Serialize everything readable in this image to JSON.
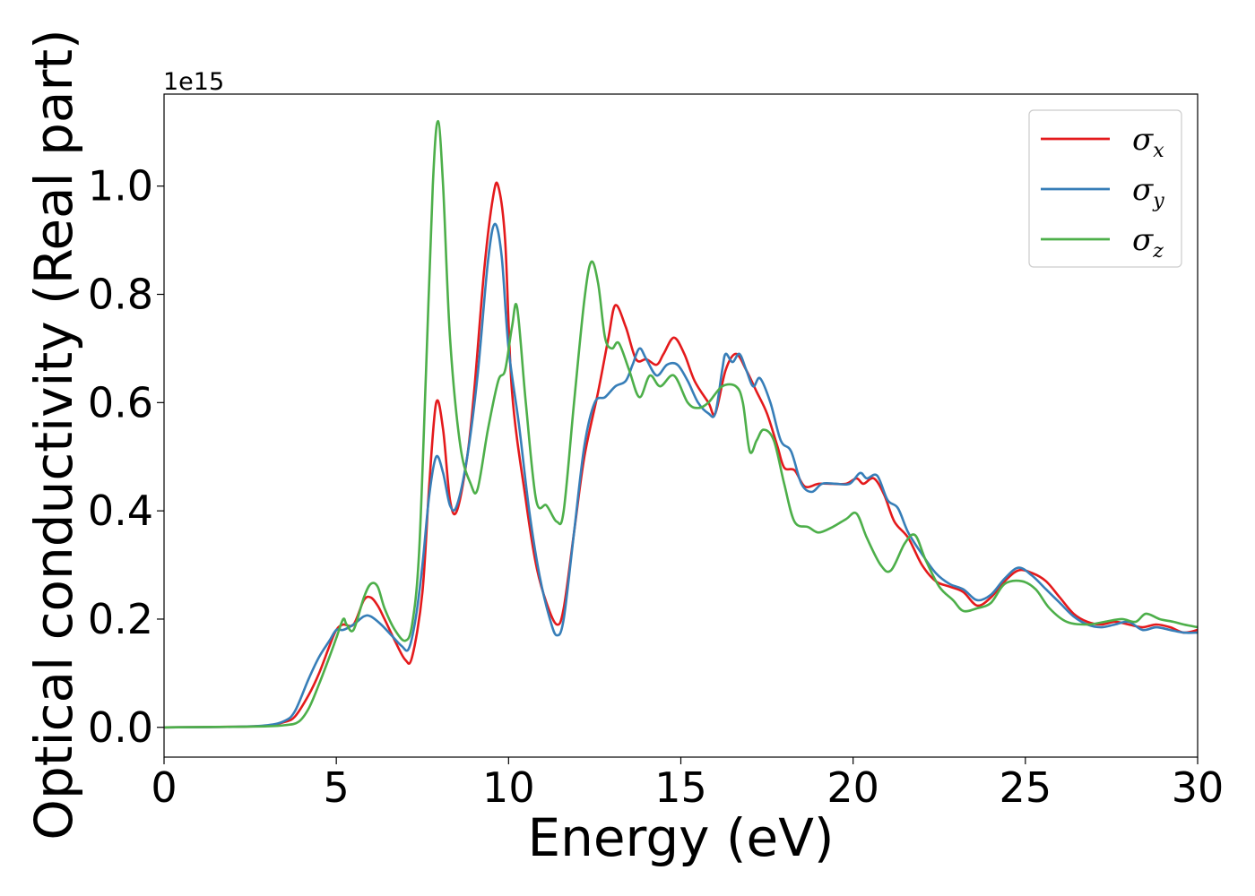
{
  "chart_data": {
    "type": "line",
    "xlabel": "Energy (eV)",
    "ylabel": "Optical conductivity (Real part)",
    "y_offset_label": "1e15",
    "xlim": [
      0,
      30
    ],
    "ylim": [
      -0.055,
      1.17
    ],
    "x_ticks": [
      0,
      5,
      10,
      15,
      20,
      25,
      30
    ],
    "x_tick_labels": [
      "0",
      "5",
      "10",
      "15",
      "20",
      "25",
      "30"
    ],
    "y_ticks": [
      0.0,
      0.2,
      0.4,
      0.6,
      0.8,
      1.0
    ],
    "y_tick_labels": [
      "0.0",
      "0.2",
      "0.4",
      "0.6",
      "0.8",
      "1.0"
    ],
    "grid": false,
    "legend_position": "top-right",
    "series": [
      {
        "name": "σx",
        "symbol": "σ",
        "subscript": "x",
        "color": "#e41a1c",
        "points": [
          [
            0,
            0
          ],
          [
            2,
            0.001
          ],
          [
            3,
            0.003
          ],
          [
            3.5,
            0.01
          ],
          [
            3.8,
            0.02
          ],
          [
            4.2,
            0.06
          ],
          [
            4.5,
            0.1
          ],
          [
            4.8,
            0.15
          ],
          [
            5.0,
            0.18
          ],
          [
            5.2,
            0.19
          ],
          [
            5.5,
            0.19
          ],
          [
            5.8,
            0.235
          ],
          [
            6.0,
            0.24
          ],
          [
            6.2,
            0.225
          ],
          [
            6.4,
            0.2
          ],
          [
            6.7,
            0.16
          ],
          [
            7.0,
            0.125
          ],
          [
            7.2,
            0.13
          ],
          [
            7.5,
            0.25
          ],
          [
            7.7,
            0.45
          ],
          [
            7.9,
            0.6
          ],
          [
            8.1,
            0.55
          ],
          [
            8.3,
            0.42
          ],
          [
            8.5,
            0.4
          ],
          [
            8.8,
            0.5
          ],
          [
            9.0,
            0.62
          ],
          [
            9.3,
            0.85
          ],
          [
            9.55,
            0.98
          ],
          [
            9.7,
            1.0
          ],
          [
            9.9,
            0.9
          ],
          [
            10.1,
            0.62
          ],
          [
            10.5,
            0.42
          ],
          [
            10.8,
            0.3
          ],
          [
            11.1,
            0.23
          ],
          [
            11.4,
            0.19
          ],
          [
            11.6,
            0.22
          ],
          [
            11.9,
            0.36
          ],
          [
            12.2,
            0.5
          ],
          [
            12.6,
            0.62
          ],
          [
            12.9,
            0.72
          ],
          [
            13.1,
            0.78
          ],
          [
            13.4,
            0.74
          ],
          [
            13.7,
            0.68
          ],
          [
            14.0,
            0.68
          ],
          [
            14.3,
            0.67
          ],
          [
            14.5,
            0.69
          ],
          [
            14.8,
            0.72
          ],
          [
            15.1,
            0.69
          ],
          [
            15.4,
            0.64
          ],
          [
            15.8,
            0.6
          ],
          [
            16.0,
            0.58
          ],
          [
            16.3,
            0.66
          ],
          [
            16.6,
            0.69
          ],
          [
            16.9,
            0.66
          ],
          [
            17.2,
            0.62
          ],
          [
            17.5,
            0.58
          ],
          [
            17.8,
            0.52
          ],
          [
            18.0,
            0.48
          ],
          [
            18.3,
            0.475
          ],
          [
            18.6,
            0.445
          ],
          [
            19.0,
            0.45
          ],
          [
            19.4,
            0.45
          ],
          [
            19.8,
            0.45
          ],
          [
            20.1,
            0.46
          ],
          [
            20.3,
            0.45
          ],
          [
            20.6,
            0.46
          ],
          [
            20.9,
            0.43
          ],
          [
            21.2,
            0.38
          ],
          [
            21.6,
            0.35
          ],
          [
            22.0,
            0.3
          ],
          [
            22.4,
            0.27
          ],
          [
            22.8,
            0.26
          ],
          [
            23.2,
            0.25
          ],
          [
            23.6,
            0.225
          ],
          [
            24.0,
            0.24
          ],
          [
            24.4,
            0.27
          ],
          [
            24.8,
            0.29
          ],
          [
            25.2,
            0.285
          ],
          [
            25.6,
            0.27
          ],
          [
            26.0,
            0.24
          ],
          [
            26.4,
            0.21
          ],
          [
            26.8,
            0.195
          ],
          [
            27.2,
            0.19
          ],
          [
            27.6,
            0.195
          ],
          [
            28.0,
            0.19
          ],
          [
            28.4,
            0.185
          ],
          [
            28.8,
            0.19
          ],
          [
            29.2,
            0.185
          ],
          [
            29.6,
            0.175
          ],
          [
            30.0,
            0.18
          ]
        ]
      },
      {
        "name": "σy",
        "symbol": "σ",
        "subscript": "y",
        "color": "#377eb8",
        "points": [
          [
            0,
            0
          ],
          [
            2,
            0.001
          ],
          [
            3,
            0.004
          ],
          [
            3.5,
            0.012
          ],
          [
            3.8,
            0.03
          ],
          [
            4.2,
            0.09
          ],
          [
            4.5,
            0.13
          ],
          [
            4.8,
            0.16
          ],
          [
            5.0,
            0.18
          ],
          [
            5.2,
            0.18
          ],
          [
            5.5,
            0.19
          ],
          [
            5.8,
            0.205
          ],
          [
            6.0,
            0.205
          ],
          [
            6.3,
            0.19
          ],
          [
            6.6,
            0.17
          ],
          [
            6.9,
            0.15
          ],
          [
            7.1,
            0.145
          ],
          [
            7.3,
            0.2
          ],
          [
            7.5,
            0.3
          ],
          [
            7.7,
            0.43
          ],
          [
            7.9,
            0.5
          ],
          [
            8.1,
            0.47
          ],
          [
            8.3,
            0.41
          ],
          [
            8.5,
            0.41
          ],
          [
            8.8,
            0.5
          ],
          [
            9.1,
            0.65
          ],
          [
            9.4,
            0.86
          ],
          [
            9.6,
            0.93
          ],
          [
            9.8,
            0.87
          ],
          [
            10.0,
            0.7
          ],
          [
            10.3,
            0.56
          ],
          [
            10.6,
            0.4
          ],
          [
            10.9,
            0.28
          ],
          [
            11.2,
            0.2
          ],
          [
            11.4,
            0.17
          ],
          [
            11.6,
            0.2
          ],
          [
            11.9,
            0.36
          ],
          [
            12.2,
            0.52
          ],
          [
            12.5,
            0.6
          ],
          [
            12.8,
            0.61
          ],
          [
            13.1,
            0.63
          ],
          [
            13.4,
            0.64
          ],
          [
            13.6,
            0.67
          ],
          [
            13.8,
            0.7
          ],
          [
            14.0,
            0.68
          ],
          [
            14.3,
            0.65
          ],
          [
            14.6,
            0.67
          ],
          [
            14.9,
            0.67
          ],
          [
            15.2,
            0.64
          ],
          [
            15.5,
            0.6
          ],
          [
            15.8,
            0.58
          ],
          [
            16.0,
            0.58
          ],
          [
            16.2,
            0.66
          ],
          [
            16.3,
            0.69
          ],
          [
            16.5,
            0.675
          ],
          [
            16.7,
            0.69
          ],
          [
            16.9,
            0.66
          ],
          [
            17.1,
            0.63
          ],
          [
            17.3,
            0.645
          ],
          [
            17.6,
            0.6
          ],
          [
            17.9,
            0.53
          ],
          [
            18.2,
            0.51
          ],
          [
            18.5,
            0.45
          ],
          [
            18.8,
            0.435
          ],
          [
            19.1,
            0.45
          ],
          [
            19.5,
            0.45
          ],
          [
            19.9,
            0.45
          ],
          [
            20.2,
            0.47
          ],
          [
            20.4,
            0.46
          ],
          [
            20.7,
            0.465
          ],
          [
            21.0,
            0.42
          ],
          [
            21.3,
            0.405
          ],
          [
            21.6,
            0.36
          ],
          [
            22.0,
            0.32
          ],
          [
            22.4,
            0.285
          ],
          [
            22.8,
            0.265
          ],
          [
            23.2,
            0.255
          ],
          [
            23.6,
            0.235
          ],
          [
            24.0,
            0.245
          ],
          [
            24.4,
            0.275
          ],
          [
            24.8,
            0.295
          ],
          [
            25.2,
            0.28
          ],
          [
            25.6,
            0.255
          ],
          [
            26.0,
            0.23
          ],
          [
            26.4,
            0.205
          ],
          [
            26.8,
            0.19
          ],
          [
            27.2,
            0.185
          ],
          [
            27.6,
            0.19
          ],
          [
            28.0,
            0.195
          ],
          [
            28.4,
            0.18
          ],
          [
            28.8,
            0.185
          ],
          [
            29.2,
            0.18
          ],
          [
            29.6,
            0.175
          ],
          [
            30.0,
            0.175
          ]
        ]
      },
      {
        "name": "σz",
        "symbol": "σ",
        "subscript": "z",
        "color": "#4daf4a",
        "points": [
          [
            0,
            0
          ],
          [
            2,
            0.001
          ],
          [
            3,
            0.002
          ],
          [
            3.5,
            0.004
          ],
          [
            3.9,
            0.01
          ],
          [
            4.2,
            0.035
          ],
          [
            4.5,
            0.08
          ],
          [
            4.8,
            0.13
          ],
          [
            5.0,
            0.165
          ],
          [
            5.2,
            0.2
          ],
          [
            5.3,
            0.19
          ],
          [
            5.5,
            0.18
          ],
          [
            5.8,
            0.24
          ],
          [
            6.0,
            0.265
          ],
          [
            6.2,
            0.26
          ],
          [
            6.4,
            0.22
          ],
          [
            6.7,
            0.18
          ],
          [
            7.0,
            0.16
          ],
          [
            7.2,
            0.19
          ],
          [
            7.4,
            0.32
          ],
          [
            7.6,
            0.65
          ],
          [
            7.8,
            1.0
          ],
          [
            7.95,
            1.12
          ],
          [
            8.1,
            1.0
          ],
          [
            8.3,
            0.72
          ],
          [
            8.6,
            0.52
          ],
          [
            8.9,
            0.45
          ],
          [
            9.1,
            0.44
          ],
          [
            9.4,
            0.55
          ],
          [
            9.7,
            0.64
          ],
          [
            9.9,
            0.66
          ],
          [
            10.1,
            0.74
          ],
          [
            10.25,
            0.775
          ],
          [
            10.5,
            0.6
          ],
          [
            10.8,
            0.42
          ],
          [
            11.1,
            0.41
          ],
          [
            11.4,
            0.38
          ],
          [
            11.6,
            0.4
          ],
          [
            11.9,
            0.6
          ],
          [
            12.2,
            0.79
          ],
          [
            12.4,
            0.86
          ],
          [
            12.6,
            0.82
          ],
          [
            12.8,
            0.72
          ],
          [
            13.0,
            0.7
          ],
          [
            13.2,
            0.71
          ],
          [
            13.5,
            0.66
          ],
          [
            13.8,
            0.61
          ],
          [
            14.1,
            0.65
          ],
          [
            14.4,
            0.63
          ],
          [
            14.8,
            0.65
          ],
          [
            15.2,
            0.6
          ],
          [
            15.5,
            0.59
          ],
          [
            15.8,
            0.6
          ],
          [
            16.2,
            0.63
          ],
          [
            16.6,
            0.63
          ],
          [
            16.8,
            0.6
          ],
          [
            17.0,
            0.51
          ],
          [
            17.2,
            0.53
          ],
          [
            17.4,
            0.55
          ],
          [
            17.7,
            0.53
          ],
          [
            18.0,
            0.45
          ],
          [
            18.3,
            0.38
          ],
          [
            18.7,
            0.37
          ],
          [
            19.0,
            0.36
          ],
          [
            19.4,
            0.37
          ],
          [
            19.8,
            0.385
          ],
          [
            20.1,
            0.395
          ],
          [
            20.4,
            0.35
          ],
          [
            20.8,
            0.3
          ],
          [
            21.1,
            0.29
          ],
          [
            21.5,
            0.34
          ],
          [
            21.8,
            0.355
          ],
          [
            22.1,
            0.31
          ],
          [
            22.5,
            0.26
          ],
          [
            22.9,
            0.235
          ],
          [
            23.2,
            0.215
          ],
          [
            23.6,
            0.22
          ],
          [
            24.0,
            0.23
          ],
          [
            24.4,
            0.265
          ],
          [
            24.9,
            0.27
          ],
          [
            25.3,
            0.255
          ],
          [
            25.7,
            0.22
          ],
          [
            26.2,
            0.195
          ],
          [
            26.8,
            0.19
          ],
          [
            27.3,
            0.195
          ],
          [
            27.8,
            0.2
          ],
          [
            28.2,
            0.195
          ],
          [
            28.5,
            0.21
          ],
          [
            28.9,
            0.2
          ],
          [
            29.3,
            0.195
          ],
          [
            29.6,
            0.19
          ],
          [
            30.0,
            0.185
          ]
        ]
      }
    ]
  }
}
